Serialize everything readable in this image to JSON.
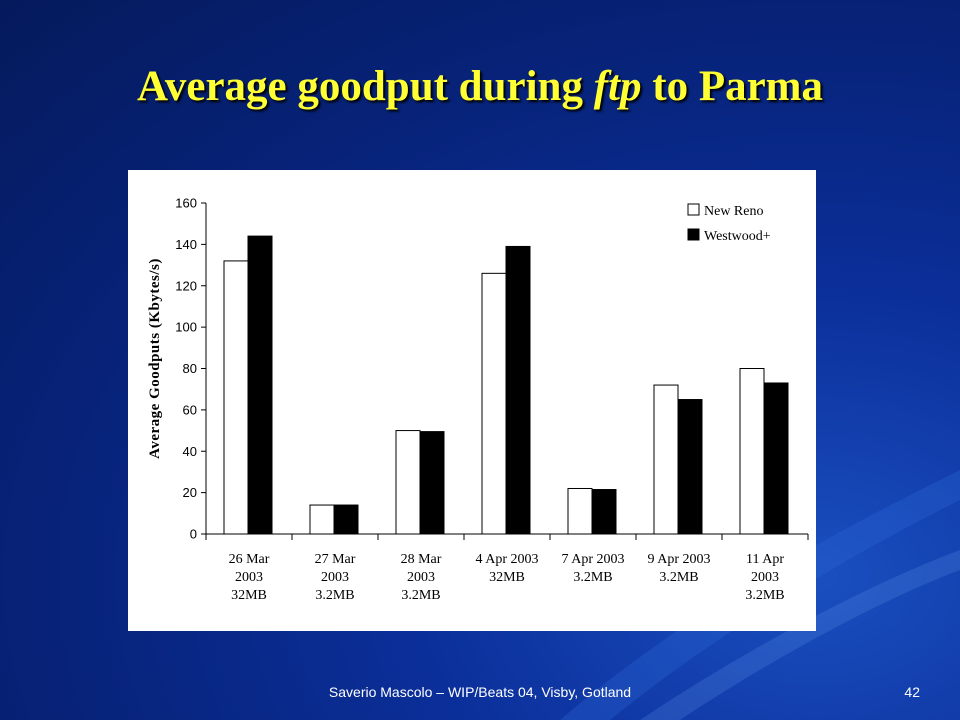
{
  "slide": {
    "title_before": "Average goodput during ",
    "title_italic": "ftp",
    "title_after": " to Parma",
    "footer": "Saverio Mascolo  –  WIP/Beats 04,  Visby, Gotland",
    "page_number": "42"
  },
  "chart_data": {
    "type": "bar",
    "title": "",
    "xlabel": "",
    "ylabel": "Average Goodputs (Kbytes/s)",
    "ylim": [
      0,
      160
    ],
    "yticks": [
      0,
      20,
      40,
      60,
      80,
      100,
      120,
      140,
      160
    ],
    "grid": false,
    "legend_position": "top-right",
    "categories": [
      [
        "26 Mar",
        "2003",
        "32MB"
      ],
      [
        "27 Mar",
        "2003",
        "3.2MB"
      ],
      [
        "28 Mar",
        "2003",
        "3.2MB"
      ],
      [
        "4 Apr 2003",
        "32MB"
      ],
      [
        "7 Apr 2003",
        "3.2MB"
      ],
      [
        "9 Apr 2003",
        "3.2MB"
      ],
      [
        "11 Apr",
        "2003",
        "3.2MB"
      ]
    ],
    "series": [
      {
        "name": "New Reno",
        "color": "#ffffff",
        "values": [
          132,
          14,
          50,
          126,
          22,
          72,
          80
        ]
      },
      {
        "name": "Westwood+",
        "color": "#000000",
        "values": [
          144,
          14,
          49.5,
          139,
          21.5,
          65,
          73
        ]
      }
    ]
  }
}
